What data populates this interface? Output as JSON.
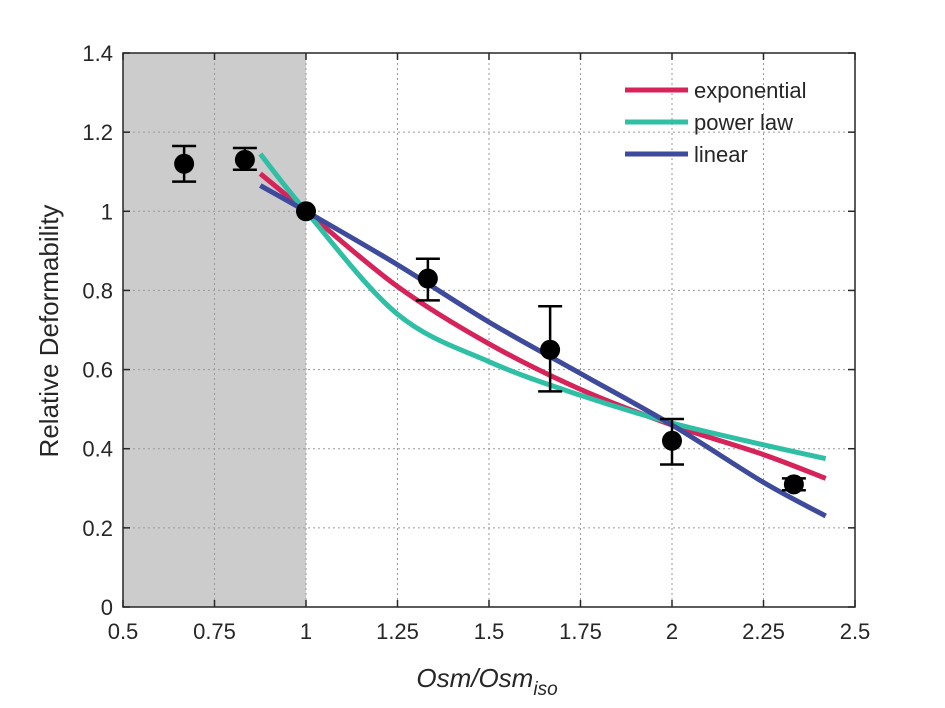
{
  "chart_data": {
    "type": "scatter",
    "xlabel_main": "Osm/Osm",
    "xlabel_sub": "iso",
    "ylabel": "Relative Deformability",
    "xlim": [
      0.5,
      2.5
    ],
    "ylim": [
      0,
      1.4
    ],
    "xticks": [
      "0.5",
      "0.75",
      "1",
      "1.25",
      "1.5",
      "1.75",
      "2",
      "2.25",
      "2.5"
    ],
    "yticks": [
      "0",
      "0.2",
      "0.4",
      "0.6",
      "0.8",
      "1",
      "1.2",
      "1.4"
    ],
    "grid": true,
    "shaded_region": {
      "x_from": 0.5,
      "x_to": 1.0,
      "color": "#cccccc"
    },
    "points": {
      "x": [
        0.667,
        0.833,
        1.0,
        1.333,
        1.667,
        2.0,
        2.333
      ],
      "y": [
        1.12,
        1.13,
        1.0,
        0.83,
        0.65,
        0.42,
        0.31
      ],
      "err_low": [
        1.075,
        1.105,
        1.0,
        0.775,
        0.545,
        0.36,
        0.295
      ],
      "err_high": [
        1.165,
        1.16,
        1.0,
        0.88,
        0.76,
        0.475,
        0.325
      ],
      "color": "#000000"
    },
    "series": [
      {
        "name": "exponential",
        "color": "#d6245b",
        "x": [
          0.875,
          1.0,
          1.25,
          1.5,
          1.75,
          2.0,
          2.25,
          2.42
        ],
        "y": [
          1.095,
          1.0,
          0.81,
          0.665,
          0.55,
          0.46,
          0.385,
          0.325
        ]
      },
      {
        "name": "power law",
        "color": "#2ebfa5",
        "x": [
          0.875,
          1.0,
          1.25,
          1.5,
          1.75,
          2.0,
          2.25,
          2.42
        ],
        "y": [
          1.145,
          1.0,
          0.74,
          0.62,
          0.535,
          0.465,
          0.41,
          0.375
        ]
      },
      {
        "name": "linear",
        "color": "#3e4a9c",
        "x": [
          0.875,
          1.0,
          1.25,
          1.5,
          1.75,
          2.0,
          2.25,
          2.42
        ],
        "y": [
          1.065,
          1.0,
          0.865,
          0.72,
          0.59,
          0.46,
          0.315,
          0.23
        ]
      }
    ],
    "legend_position": "top-right"
  }
}
